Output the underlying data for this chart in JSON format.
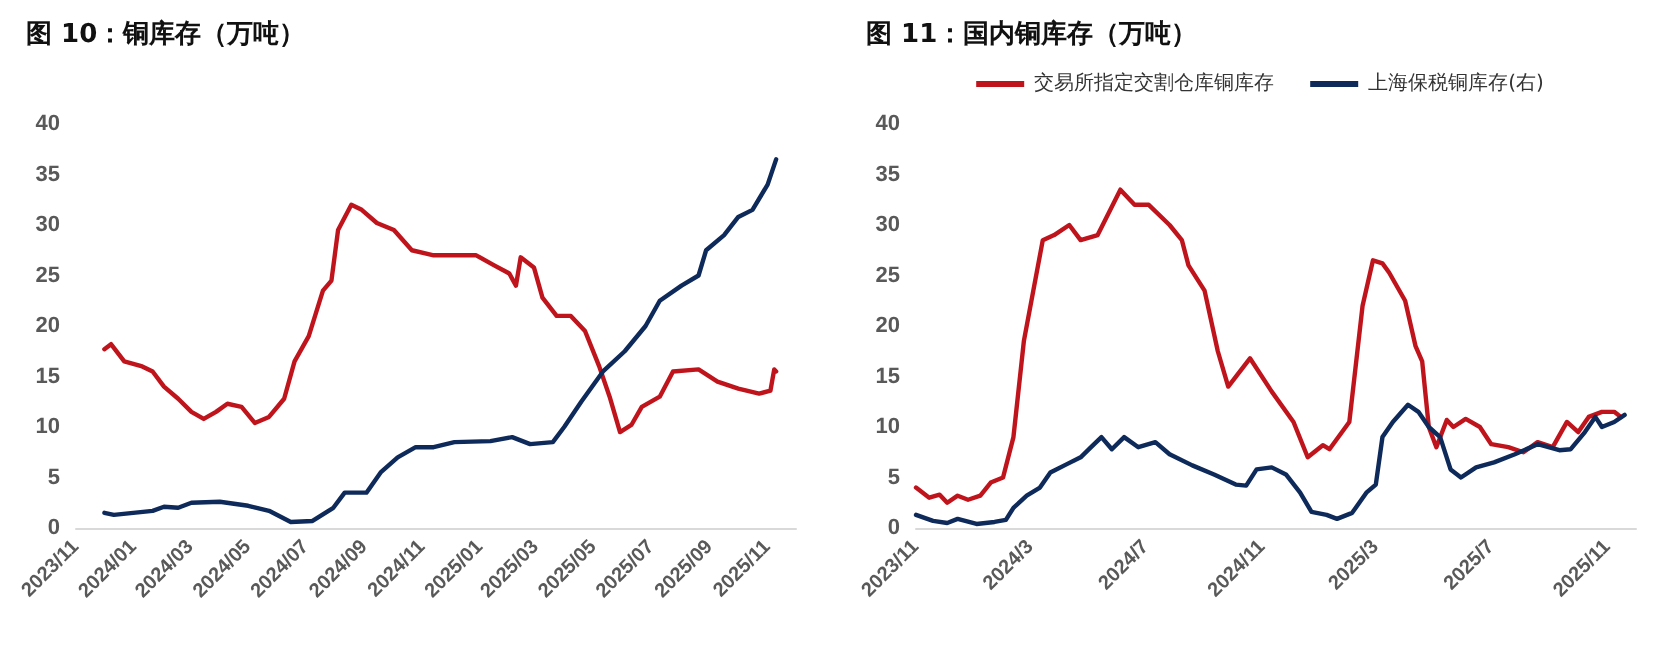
{
  "chart_data": [
    {
      "type": "line",
      "title": "图 10：铜库存（万吨）",
      "legend": false,
      "grid": false,
      "marker": "none",
      "line_style": "solid",
      "xlim": [
        "2023-11-01",
        "2025-12-01"
      ],
      "xticks": [
        {
          "value": "2023-11-01",
          "label": "2023/11"
        },
        {
          "value": "2024-01-01",
          "label": "2024/01"
        },
        {
          "value": "2024-03-01",
          "label": "2024/03"
        },
        {
          "value": "2024-05-01",
          "label": "2024/05"
        },
        {
          "value": "2024-07-01",
          "label": "2024/07"
        },
        {
          "value": "2024-09-01",
          "label": "2024/09"
        },
        {
          "value": "2024-11-01",
          "label": "2024/11"
        },
        {
          "value": "2025-01-01",
          "label": "2025/01"
        },
        {
          "value": "2025-03-01",
          "label": "2025/03"
        },
        {
          "value": "2025-05-01",
          "label": "2025/05"
        },
        {
          "value": "2025-07-01",
          "label": "2025/07"
        },
        {
          "value": "2025-09-01",
          "label": "2025/09"
        },
        {
          "value": "2025-11-01",
          "label": "2025/11"
        }
      ],
      "ylim": [
        0,
        40
      ],
      "yticks": [
        0,
        5,
        10,
        15,
        20,
        25,
        30,
        35,
        40
      ],
      "series": [
        {
          "color": "#c0141c",
          "x": [
            "2023-12-01",
            "2023-12-08",
            "2023-12-22",
            "2024-01-10",
            "2024-01-21",
            "2024-02-02",
            "2024-02-17",
            "2024-03-02",
            "2024-03-15",
            "2024-03-28",
            "2024-04-09",
            "2024-04-24",
            "2024-05-08",
            "2024-05-23",
            "2024-06-08",
            "2024-06-19",
            "2024-07-04",
            "2024-07-19",
            "2024-07-28",
            "2024-08-04",
            "2024-08-18",
            "2024-08-29",
            "2024-09-14",
            "2024-10-02",
            "2024-10-21",
            "2024-11-13",
            "2024-12-05",
            "2024-12-28",
            "2025-01-16",
            "2025-02-01",
            "2025-02-08",
            "2025-02-13",
            "2025-02-27",
            "2025-03-08",
            "2025-03-23",
            "2025-04-07",
            "2025-04-22",
            "2025-05-07",
            "2025-05-18",
            "2025-05-29",
            "2025-06-10",
            "2025-06-21",
            "2025-07-10",
            "2025-07-24",
            "2025-08-20",
            "2025-09-09",
            "2025-10-01",
            "2025-10-23",
            "2025-11-04",
            "2025-11-08",
            "2025-11-10"
          ],
          "values": [
            17.7,
            18.2,
            16.5,
            16,
            15.5,
            14,
            12.8,
            11.5,
            10.8,
            11.5,
            12.3,
            12,
            10.4,
            11,
            12.8,
            16.5,
            19,
            23.5,
            24.5,
            29.5,
            32,
            31.5,
            30.2,
            29.5,
            27.5,
            27,
            27,
            27,
            26,
            25.2,
            24,
            26.8,
            25.8,
            22.8,
            21,
            21,
            19.5,
            16,
            13,
            9.5,
            10.2,
            12,
            13,
            15.5,
            15.7,
            14.5,
            13.8,
            13.3,
            13.6,
            15.7,
            15.5
          ]
        },
        {
          "color": "#0e2a5a",
          "x": [
            "2023-12-01",
            "2023-12-11",
            "2024-01-21",
            "2024-02-02",
            "2024-02-17",
            "2024-03-02",
            "2024-04-01",
            "2024-05-01",
            "2024-05-23",
            "2024-06-15",
            "2024-07-08",
            "2024-07-30",
            "2024-08-11",
            "2024-09-03",
            "2024-09-18",
            "2024-10-06",
            "2024-10-25",
            "2024-11-13",
            "2024-12-05",
            "2025-01-12",
            "2025-02-04",
            "2025-02-23",
            "2025-03-19",
            "2025-03-31",
            "2025-04-18",
            "2025-05-11",
            "2025-06-03",
            "2025-06-25",
            "2025-07-10",
            "2025-08-02",
            "2025-08-20",
            "2025-08-28",
            "2025-09-16",
            "2025-10-01",
            "2025-10-16",
            "2025-11-01",
            "2025-11-10"
          ],
          "values": [
            1.5,
            1.3,
            1.7,
            2.1,
            2,
            2.5,
            2.6,
            2.2,
            1.7,
            0.6,
            0.7,
            2,
            3.5,
            3.5,
            5.5,
            7,
            8,
            8,
            8.5,
            8.6,
            9,
            8.3,
            8.5,
            10,
            12.5,
            15.5,
            17.5,
            20,
            22.5,
            24,
            25,
            27.5,
            29,
            30.8,
            31.5,
            34,
            36.5
          ]
        }
      ]
    },
    {
      "type": "line",
      "title": "图 11：国内铜库存（万吨）",
      "legend": "top",
      "grid": false,
      "marker": "none",
      "line_style": "solid",
      "xlim": [
        "2023-11-01",
        "2025-12-01"
      ],
      "xticks": [
        {
          "value": "2023-11-01",
          "label": "2023/11"
        },
        {
          "value": "2024-03-01",
          "label": "2024/3"
        },
        {
          "value": "2024-07-01",
          "label": "2024/7"
        },
        {
          "value": "2024-11-01",
          "label": "2024/11"
        },
        {
          "value": "2025-03-01",
          "label": "2025/3"
        },
        {
          "value": "2025-07-01",
          "label": "2025/7"
        },
        {
          "value": "2025-11-01",
          "label": "2025/11"
        }
      ],
      "ylim": [
        0,
        40
      ],
      "yticks": [
        0,
        5,
        10,
        15,
        20,
        25,
        30,
        35,
        40
      ],
      "series": [
        {
          "name": "交易所指定交割仓库铜库存",
          "color": "#c0141c",
          "x": [
            "2023-11-01",
            "2023-11-15",
            "2023-11-26",
            "2023-12-04",
            "2023-12-15",
            "2023-12-26",
            "2024-01-08",
            "2024-01-19",
            "2024-02-01",
            "2024-02-12",
            "2024-02-23",
            "2024-03-04",
            "2024-03-14",
            "2024-03-26",
            "2024-04-11",
            "2024-04-23",
            "2024-05-11",
            "2024-06-04",
            "2024-06-19",
            "2024-07-04",
            "2024-07-26",
            "2024-08-08",
            "2024-08-15",
            "2024-09-01",
            "2024-09-15",
            "2024-09-26",
            "2024-10-19",
            "2024-11-11",
            "2024-12-04",
            "2024-12-19",
            "2025-01-04",
            "2025-01-11",
            "2025-02-01",
            "2025-02-15",
            "2025-02-26",
            "2025-03-08",
            "2025-03-15",
            "2025-04-01",
            "2025-04-12",
            "2025-04-19",
            "2025-04-26",
            "2025-05-04",
            "2025-05-15",
            "2025-05-22",
            "2025-06-04",
            "2025-06-19",
            "2025-07-01",
            "2025-07-19",
            "2025-08-04",
            "2025-08-19",
            "2025-09-04",
            "2025-09-19",
            "2025-10-01",
            "2025-10-12",
            "2025-10-26",
            "2025-11-08",
            "2025-11-15"
          ],
          "values": [
            4,
            3,
            3.3,
            2.5,
            3.2,
            2.8,
            3.2,
            4.5,
            5,
            9,
            18.5,
            23.5,
            28.5,
            29,
            30,
            28.5,
            29,
            33.5,
            32,
            32,
            30,
            28.5,
            26,
            23.5,
            17.5,
            14,
            16.8,
            13.5,
            10.5,
            7,
            8.2,
            7.8,
            10.5,
            22,
            26.5,
            26.2,
            25.3,
            22.5,
            18,
            16.5,
            10,
            8,
            10.7,
            10,
            10.8,
            10,
            8.3,
            8,
            7.5,
            8.5,
            8,
            10.5,
            9.5,
            11,
            11.5,
            11.5,
            11
          ]
        },
        {
          "name": "上海保税铜库存(右)",
          "color": "#0e2a5a",
          "x": [
            "2023-11-01",
            "2023-11-19",
            "2023-12-04",
            "2023-12-15",
            "2024-01-04",
            "2024-01-23",
            "2024-02-04",
            "2024-02-12",
            "2024-02-26",
            "2024-03-11",
            "2024-03-22",
            "2024-04-08",
            "2024-04-23",
            "2024-05-04",
            "2024-05-15",
            "2024-05-26",
            "2024-06-08",
            "2024-06-23",
            "2024-07-11",
            "2024-07-26",
            "2024-08-19",
            "2024-09-11",
            "2024-10-04",
            "2024-10-15",
            "2024-10-26",
            "2024-11-11",
            "2024-11-26",
            "2024-12-11",
            "2024-12-23",
            "2025-01-08",
            "2025-01-19",
            "2025-02-04",
            "2025-02-19",
            "2025-03-01",
            "2025-03-08",
            "2025-03-19",
            "2025-04-04",
            "2025-04-15",
            "2025-04-26",
            "2025-05-08",
            "2025-05-19",
            "2025-05-30",
            "2025-06-15",
            "2025-07-04",
            "2025-07-26",
            "2025-08-19",
            "2025-09-11",
            "2025-09-23",
            "2025-10-08",
            "2025-10-19",
            "2025-10-26",
            "2025-11-08",
            "2025-11-19"
          ],
          "values": [
            1.3,
            0.7,
            0.5,
            0.9,
            0.4,
            0.6,
            0.8,
            2,
            3.2,
            4,
            5.5,
            6.3,
            7,
            8,
            9,
            7.8,
            9,
            8,
            8.5,
            7.3,
            6.2,
            5.3,
            4.3,
            4.2,
            5.8,
            6,
            5.3,
            3.5,
            1.6,
            1.3,
            0.9,
            1.5,
            3.5,
            4.3,
            9,
            10.5,
            12.2,
            11.5,
            10,
            9,
            5.8,
            5,
            6,
            6.5,
            7.3,
            8.3,
            7.7,
            7.8,
            9.5,
            11,
            10,
            10.5,
            11.2
          ]
        }
      ]
    }
  ]
}
